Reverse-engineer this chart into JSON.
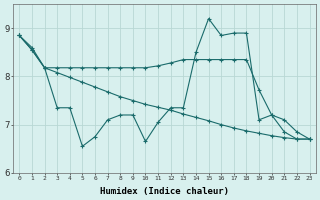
{
  "title": "",
  "xlabel": "Humidex (Indice chaleur)",
  "ylabel": "",
  "background_color": "#d8f0ee",
  "grid_color": "#b8d8d4",
  "line_color": "#1a6b6b",
  "x_ticks": [
    0,
    1,
    2,
    3,
    4,
    5,
    6,
    7,
    8,
    9,
    10,
    11,
    12,
    13,
    14,
    15,
    16,
    17,
    18,
    19,
    20,
    21,
    22,
    23
  ],
  "ylim": [
    6.0,
    9.5
  ],
  "xlim": [
    -0.5,
    23.5
  ],
  "yticks": [
    6,
    7,
    8,
    9
  ],
  "series1_x": [
    0,
    1,
    2,
    3,
    4,
    5,
    6,
    7,
    8,
    9,
    10,
    11,
    12,
    13,
    14,
    15,
    16,
    17,
    18,
    19,
    20,
    21,
    22,
    23
  ],
  "series1_y": [
    8.85,
    8.55,
    8.18,
    8.18,
    8.18,
    8.18,
    8.18,
    8.18,
    8.18,
    8.18,
    8.18,
    8.22,
    8.28,
    8.35,
    8.35,
    8.35,
    8.35,
    8.35,
    8.35,
    7.72,
    7.2,
    6.85,
    6.7,
    6.7
  ],
  "series2_x": [
    0,
    1,
    2,
    3,
    4,
    5,
    6,
    7,
    8,
    9,
    10,
    11,
    12,
    13,
    14,
    15,
    16,
    17,
    18,
    19,
    20,
    21,
    22,
    23
  ],
  "series2_y": [
    8.85,
    8.55,
    8.18,
    7.35,
    7.35,
    6.55,
    6.75,
    7.1,
    7.2,
    7.2,
    6.65,
    7.05,
    7.35,
    7.35,
    8.5,
    9.2,
    8.85,
    8.9,
    8.9,
    7.1,
    7.2,
    7.1,
    6.85,
    6.7
  ],
  "series3_x": [
    0,
    1,
    2,
    3,
    4,
    5,
    6,
    7,
    8,
    9,
    10,
    11,
    12,
    13,
    14,
    15,
    16,
    17,
    18,
    19,
    20,
    21,
    22,
    23
  ],
  "series3_y": [
    8.85,
    8.6,
    8.18,
    8.08,
    7.98,
    7.88,
    7.78,
    7.68,
    7.58,
    7.5,
    7.42,
    7.36,
    7.3,
    7.22,
    7.15,
    7.08,
    7.0,
    6.93,
    6.87,
    6.82,
    6.77,
    6.73,
    6.7,
    6.7
  ]
}
